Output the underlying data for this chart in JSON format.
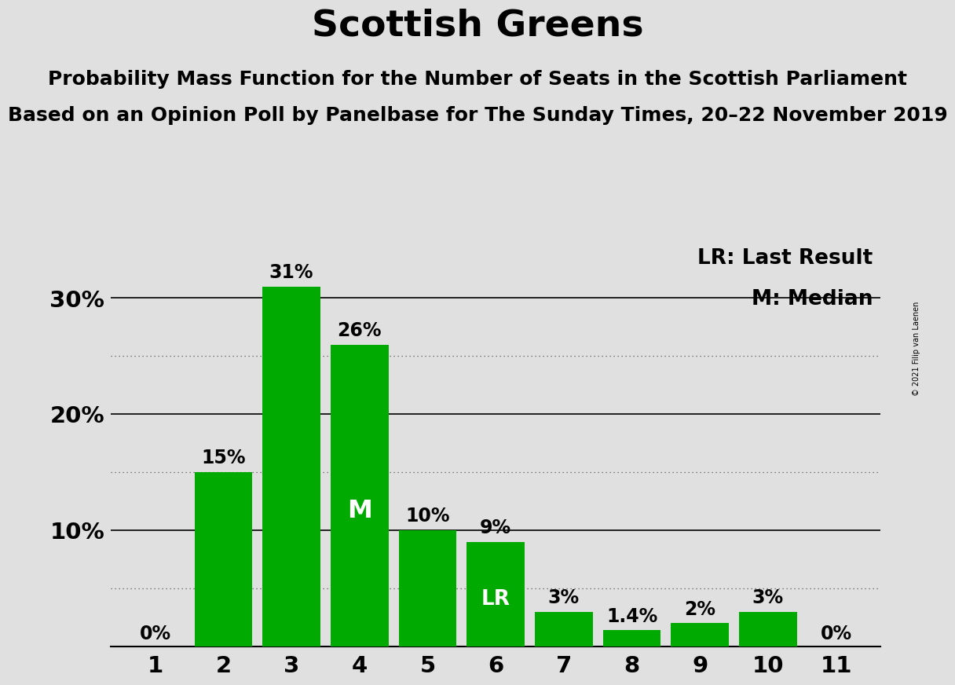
{
  "title": "Scottish Greens",
  "subtitle1": "Probability Mass Function for the Number of Seats in the Scottish Parliament",
  "subtitle2": "Based on an Opinion Poll by Panelbase for The Sunday Times, 20–22 November 2019",
  "copyright": "© 2021 Filip van Laenen",
  "legend_lr": "LR: Last Result",
  "legend_m": "M: Median",
  "categories": [
    1,
    2,
    3,
    4,
    5,
    6,
    7,
    8,
    9,
    10,
    11
  ],
  "values": [
    0,
    15,
    31,
    26,
    10,
    9,
    3,
    1.4,
    2,
    3,
    0
  ],
  "bar_color": "#00aa00",
  "background_color": "#e0e0e0",
  "bar_labels": [
    "0%",
    "15%",
    "31%",
    "26%",
    "10%",
    "9%",
    "3%",
    "1.4%",
    "2%",
    "3%",
    "0%"
  ],
  "median_bar_idx": 3,
  "lr_bar_idx": 5,
  "ylim": [
    0,
    35
  ],
  "title_fontsize": 34,
  "subtitle_fontsize": 18,
  "label_fontsize": 17,
  "axis_fontsize": 21
}
